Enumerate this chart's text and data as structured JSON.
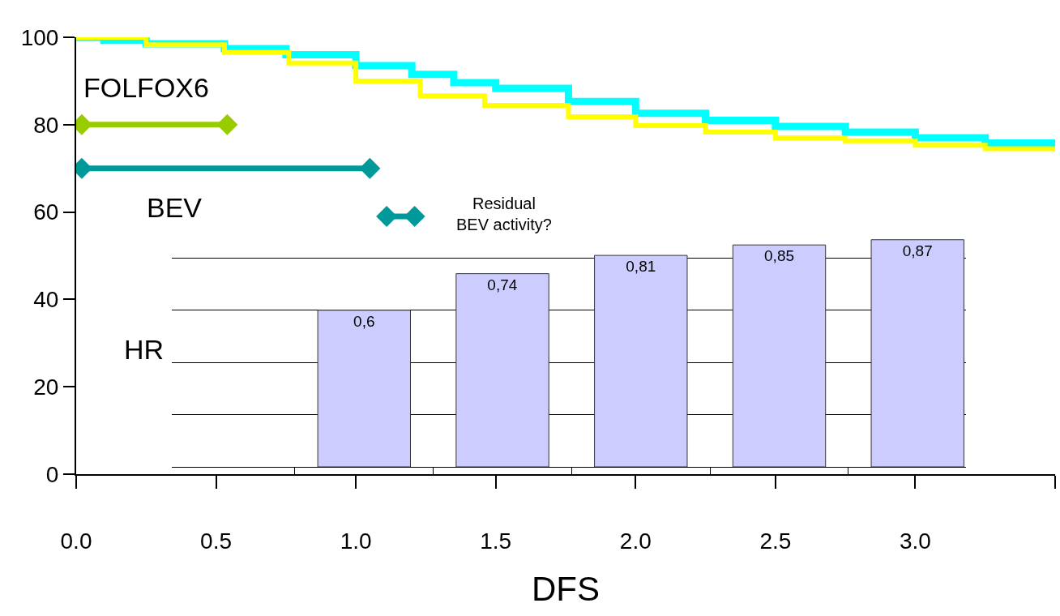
{
  "chart_data": [
    {
      "type": "step",
      "xlabel": "DFS",
      "xlim": [
        0,
        3.5
      ],
      "ylim": [
        0,
        100
      ],
      "xticks": [
        {
          "value": 0,
          "label": "0.0"
        },
        {
          "value": 0.5,
          "label": "0.5"
        },
        {
          "value": 1,
          "label": "1.0"
        },
        {
          "value": 1.5,
          "label": "1.5"
        },
        {
          "value": 2,
          "label": "2.0"
        },
        {
          "value": 2.5,
          "label": "2.5"
        },
        {
          "value": 3,
          "label": "3.0"
        },
        {
          "value": 3.5,
          "label": null
        }
      ],
      "yticks": [
        0,
        20,
        40,
        60,
        80,
        100
      ],
      "grid": false,
      "legend": false,
      "series": [
        {
          "color": "#00ffff",
          "x": [
            0,
            0.1,
            0.25,
            0.53,
            0.75,
            1.0,
            1.2,
            1.35,
            1.5,
            1.76,
            2.0,
            2.25,
            2.5,
            2.75,
            3.0,
            3.25,
            3.5
          ],
          "values": [
            100,
            99.3,
            98.5,
            97.4,
            96,
            93.5,
            91.5,
            89.6,
            88.3,
            85.3,
            82.6,
            81,
            79.6,
            78.3,
            77,
            75.8,
            74.2
          ]
        },
        {
          "color": "#ffff00",
          "x": [
            0,
            0.25,
            0.53,
            0.76,
            1.0,
            1.23,
            1.46,
            1.76,
            2.0,
            2.25,
            2.5,
            2.75,
            3.0,
            3.25,
            3.5
          ],
          "values": [
            100,
            98.3,
            96.5,
            94.1,
            90,
            86.6,
            84.4,
            81.8,
            79.8,
            78.3,
            77,
            76.3,
            75.3,
            74.5,
            73.8
          ]
        },
        {
          "type": "line",
          "name": "FOLFOX6",
          "color": "#99cc00",
          "marker": "diamond",
          "x": [
            0.02,
            0.54
          ],
          "values": [
            80,
            80
          ]
        },
        {
          "type": "line",
          "name": "BEV",
          "color": "#009999",
          "marker": "diamond",
          "x": [
            0.02,
            1.05
          ],
          "values": [
            70,
            70
          ]
        },
        {
          "type": "line",
          "name": "Residual BEV activity?",
          "color": "#009999",
          "marker": "diamond",
          "x": [
            1.11,
            1.21
          ],
          "values": [
            59,
            59
          ]
        }
      ]
    },
    {
      "type": "bar",
      "ylabel": "HR",
      "categories": [
        null,
        null,
        null,
        null,
        null
      ],
      "values": [
        0.6,
        0.74,
        0.81,
        0.85,
        0.87
      ],
      "value_labels": [
        "0,6",
        "0,74",
        "0,81",
        "0,85",
        "0,87"
      ],
      "color": "#ccccff",
      "yticks": [
        {
          "value": 0,
          "label": null
        },
        {
          "value": 0.2,
          "label": null
        },
        {
          "value": 0.4,
          "label": null
        },
        {
          "value": 0.6,
          "label": null
        },
        {
          "value": 0.8,
          "label": null
        }
      ],
      "grid": "y"
    }
  ]
}
